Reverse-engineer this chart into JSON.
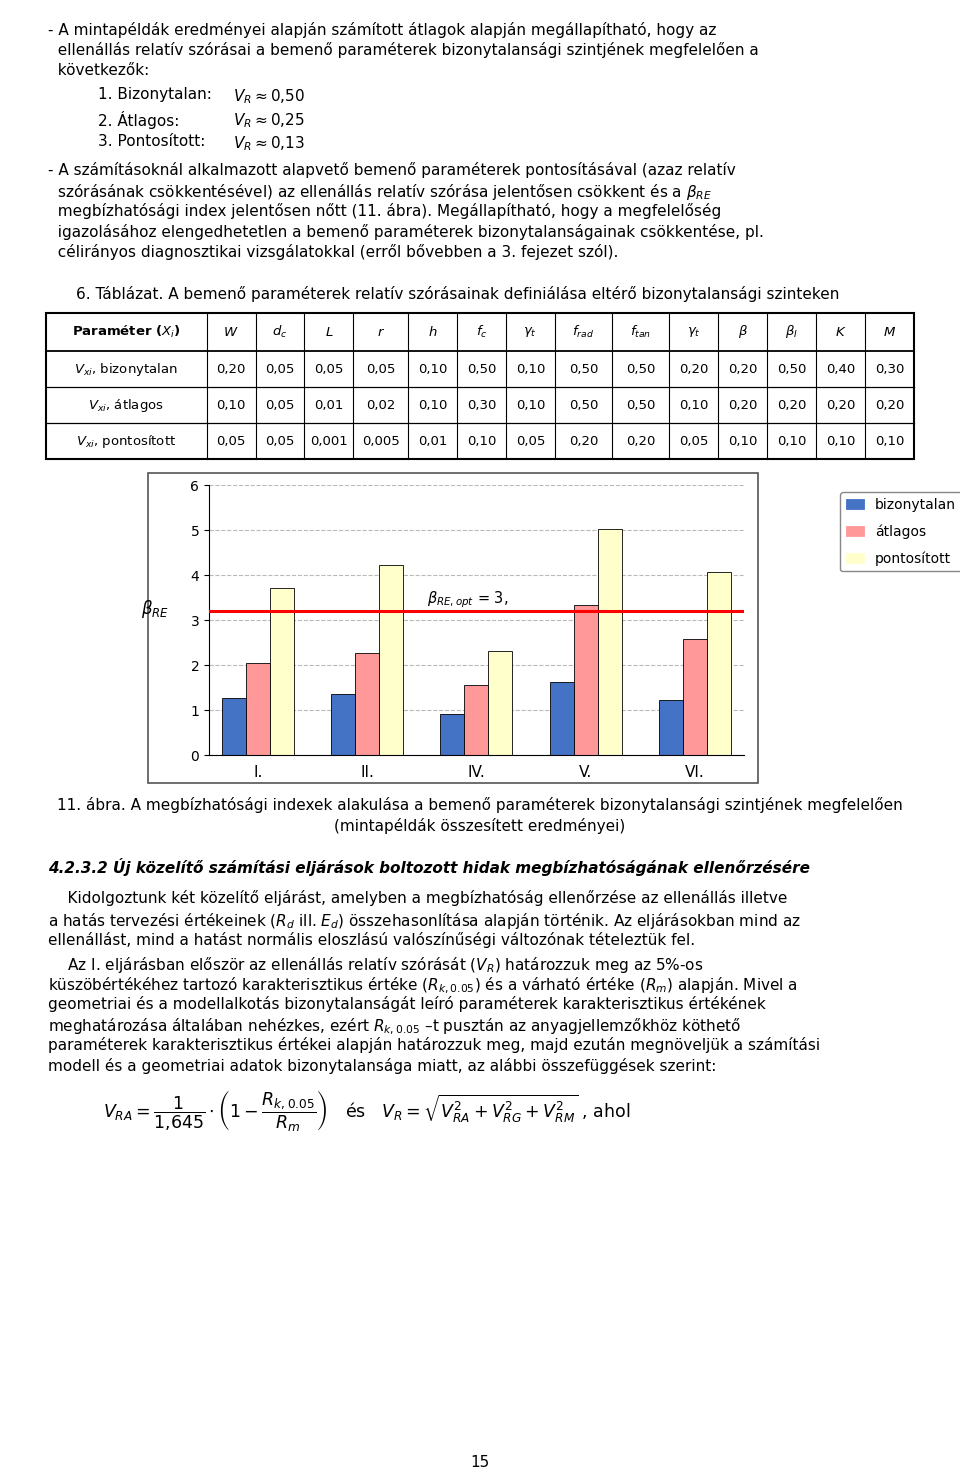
{
  "page_width": 9.6,
  "page_height": 14.82,
  "background_color": "#ffffff",
  "chart_categories": [
    "I.",
    "II.",
    "IV.",
    "V.",
    "VI."
  ],
  "chart_data": {
    "bizonytalan": [
      1.28,
      1.35,
      0.92,
      1.62,
      1.22
    ],
    "atlagos": [
      2.05,
      2.27,
      1.55,
      3.35,
      2.58
    ],
    "pontositott": [
      3.72,
      4.22,
      2.32,
      5.02,
      4.08
    ]
  },
  "chart_colors": {
    "bizonytalan": "#4472C4",
    "atlagos": "#FF9999",
    "pontositott": "#FFFFCC"
  },
  "chart_ref_line": 3.2,
  "page_number": "15"
}
